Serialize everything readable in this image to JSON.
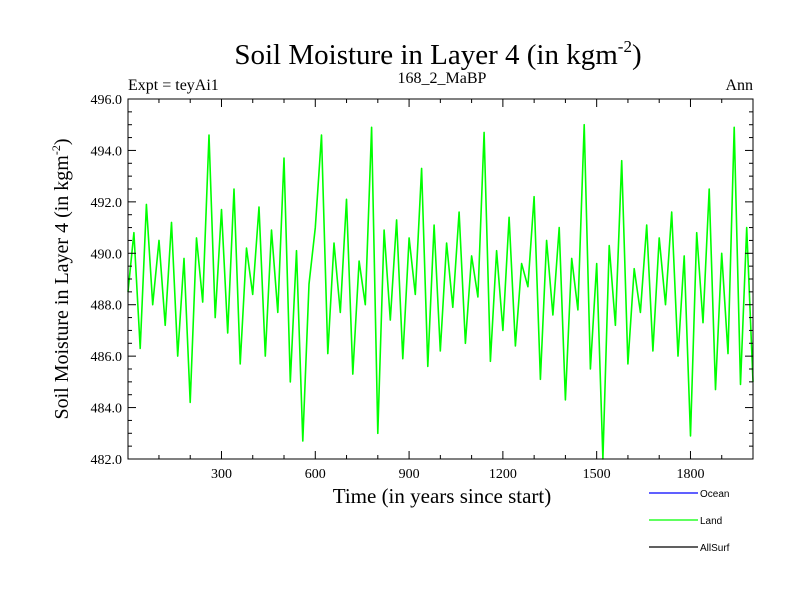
{
  "chart_data": {
    "type": "line",
    "title_main": "Soil Moisture in Layer 4 (in kgm",
    "title_sup": "-2",
    "title_close": ")",
    "subtitle_left": "Expt = teyAi1",
    "subtitle_center": "168_2_MaBP",
    "subtitle_right": "Ann",
    "ylabel_main": "Soil Moisture in Layer 4 (in kgm",
    "ylabel_sup": "-2",
    "ylabel_close": ")",
    "xlabel": "Time (in years since start)",
    "xlim": [
      1,
      2000
    ],
    "ylim": [
      482.0,
      496.0
    ],
    "xticks": [
      300,
      600,
      900,
      1200,
      1500,
      1800
    ],
    "xtick_labels": [
      "300",
      "600",
      "900",
      "1200",
      "1500",
      "1800"
    ],
    "yticks": [
      482,
      484,
      486,
      488,
      490,
      492,
      494,
      496
    ],
    "ytick_labels": [
      "482.0",
      "484.0",
      "486.0",
      "488.0",
      "490.0",
      "492.0",
      "494.0",
      "496.0"
    ],
    "legend": [
      {
        "name": "Ocean",
        "color": "#0000ff"
      },
      {
        "name": "Land",
        "color": "#00ff00"
      },
      {
        "name": "AllSurf",
        "color": "#000000"
      }
    ],
    "series": [
      {
        "name": "Land",
        "color": "#00ff00",
        "x": [
          1,
          20,
          40,
          60,
          80,
          100,
          120,
          140,
          160,
          180,
          200,
          220,
          240,
          260,
          280,
          300,
          320,
          340,
          360,
          380,
          400,
          420,
          440,
          460,
          480,
          500,
          520,
          540,
          560,
          580,
          600,
          620,
          640,
          660,
          680,
          700,
          720,
          740,
          760,
          780,
          800,
          820,
          840,
          860,
          880,
          900,
          920,
          940,
          960,
          980,
          1000,
          1020,
          1040,
          1060,
          1080,
          1100,
          1120,
          1140,
          1160,
          1180,
          1200,
          1220,
          1240,
          1260,
          1280,
          1300,
          1320,
          1340,
          1360,
          1380,
          1400,
          1420,
          1440,
          1460,
          1480,
          1500,
          1520,
          1540,
          1560,
          1580,
          1600,
          1620,
          1640,
          1660,
          1680,
          1700,
          1720,
          1740,
          1760,
          1780,
          1800,
          1820,
          1840,
          1860,
          1880,
          1900,
          1920,
          1940,
          1960,
          1980,
          2000
        ],
        "y": [
          488.5,
          490.8,
          486.3,
          491.9,
          488.0,
          490.5,
          487.2,
          491.2,
          486.0,
          489.8,
          484.2,
          490.6,
          488.1,
          494.6,
          487.5,
          491.7,
          486.9,
          492.5,
          485.7,
          490.2,
          488.4,
          491.8,
          486.0,
          490.9,
          487.7,
          493.7,
          485.0,
          490.1,
          482.7,
          488.8,
          491.0,
          494.6,
          486.1,
          490.4,
          487.7,
          492.1,
          485.3,
          489.7,
          488.0,
          494.9,
          483.0,
          490.9,
          487.4,
          491.3,
          485.9,
          490.6,
          488.4,
          493.3,
          485.6,
          491.1,
          486.2,
          490.4,
          487.9,
          491.6,
          486.5,
          489.9,
          488.3,
          494.7,
          485.8,
          490.1,
          487.0,
          491.4,
          486.4,
          489.6,
          488.7,
          492.2,
          485.1,
          490.5,
          487.6,
          491.0,
          484.3,
          489.8,
          487.8,
          495.0,
          485.5,
          489.6,
          482.0,
          490.3,
          487.2,
          493.6,
          485.7,
          489.4,
          487.7,
          491.1,
          486.2,
          490.6,
          488.0,
          491.6,
          486.0,
          489.9,
          482.9,
          490.8,
          487.3,
          492.5,
          484.7,
          490.0,
          486.1,
          494.9,
          484.9,
          491.0,
          485.0
        ]
      }
    ]
  }
}
